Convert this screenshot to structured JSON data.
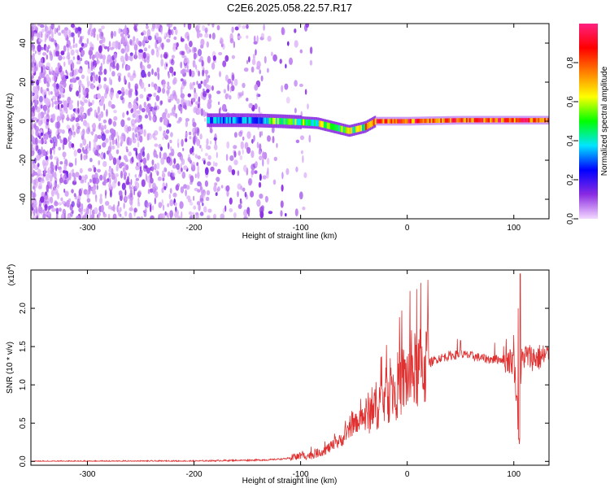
{
  "chart_data": [
    {
      "type": "heatmap",
      "title": "C2E6.2025.058.22.57.R17",
      "xlabel": "Height of straight line (km)",
      "ylabel": "Frequency (Hz)",
      "xlim": [
        -353,
        133
      ],
      "ylim": [
        -50,
        50
      ],
      "x_ticks": [
        -300,
        -200,
        -100,
        0,
        100
      ],
      "x_tick_labels": [
        "-300",
        "-200",
        "-100",
        "0",
        "100"
      ],
      "y_ticks": [
        -40,
        -20,
        0,
        20,
        40
      ],
      "y_tick_labels": [
        "-40",
        "-20",
        "0",
        "20",
        "40"
      ],
      "colorbar": {
        "label": "Normalized spectral amplitude",
        "range": [
          0,
          1
        ],
        "ticks": [
          0.0,
          0.2,
          0.4,
          0.6,
          0.8
        ],
        "tick_labels": [
          "0.0",
          "0.2",
          "0.4",
          "0.6",
          "0.8"
        ],
        "colormap": [
          "#f4d8ff",
          "#8a2be2",
          "#0000ff",
          "#00e5ff",
          "#00ff00",
          "#ffff00",
          "#ff8000",
          "#ff0000",
          "#ff2080"
        ]
      },
      "features": {
        "noise_region_x": [
          -353,
          -130
        ],
        "signal_track": [
          {
            "x": -185,
            "f": 0.5
          },
          {
            "x": -150,
            "f": 0.5
          },
          {
            "x": -120,
            "f": 0.0
          },
          {
            "x": -100,
            "f": -0.5
          },
          {
            "x": -85,
            "f": -1.0
          },
          {
            "x": -70,
            "f": -3.0
          },
          {
            "x": -55,
            "f": -5.0
          },
          {
            "x": -40,
            "f": -3.0
          },
          {
            "x": -30,
            "f": 0.0
          },
          {
            "x": 0,
            "f": 0.0
          },
          {
            "x": 50,
            "f": 0.5
          },
          {
            "x": 100,
            "f": 0.5
          },
          {
            "x": 133,
            "f": 0.5
          }
        ]
      },
      "grid": false
    },
    {
      "type": "line",
      "title": "",
      "xlabel": "Height of straight line (km)",
      "ylabel": "SNR (10 * v/v)",
      "y_multiplier": "(x10",
      "y_multiplier_exp": "4",
      "xlim": [
        -353,
        133
      ],
      "ylim": [
        -0.05,
        2.5
      ],
      "x_ticks": [
        -300,
        -200,
        -100,
        0,
        100
      ],
      "x_tick_labels": [
        "-300",
        "-200",
        "-100",
        "0",
        "100"
      ],
      "y_ticks": [
        0.0,
        0.5,
        1.0,
        1.5,
        2.0
      ],
      "y_tick_labels": [
        "0.0",
        "0.5",
        "1.0",
        "1.5",
        "2.0"
      ],
      "series": [
        {
          "color": "#e03030",
          "envelope": {
            "x": [
              -353,
              -200,
              -130,
              -110,
              -100,
              -90,
              -80,
              -70,
              -60,
              -50,
              -40,
              -30,
              -20,
              -10,
              0,
              10,
              20,
              30,
              40,
              50,
              60,
              70,
              80,
              90,
              100,
              103,
              105,
              107,
              110,
              120,
              133
            ],
            "y": [
              0.0,
              0.005,
              0.02,
              0.04,
              0.07,
              0.08,
              0.13,
              0.2,
              0.3,
              0.48,
              0.58,
              0.72,
              0.85,
              0.98,
              1.1,
              1.2,
              1.28,
              1.35,
              1.38,
              1.4,
              1.38,
              1.35,
              1.33,
              1.34,
              1.3,
              0.8,
              0.15,
              1.3,
              1.38,
              1.35,
              1.38
            ]
          },
          "spikes": [
            {
              "x": 47,
              "y": 1.6
            },
            {
              "x": 50,
              "y": 1.58
            },
            {
              "x": 82,
              "y": 1.55
            },
            {
              "x": 93,
              "y": 1.6
            },
            {
              "x": 100,
              "y": 1.65
            },
            {
              "x": 104,
              "y": 2.0
            },
            {
              "x": 106,
              "y": 2.45
            }
          ]
        }
      ],
      "grid": false
    }
  ]
}
